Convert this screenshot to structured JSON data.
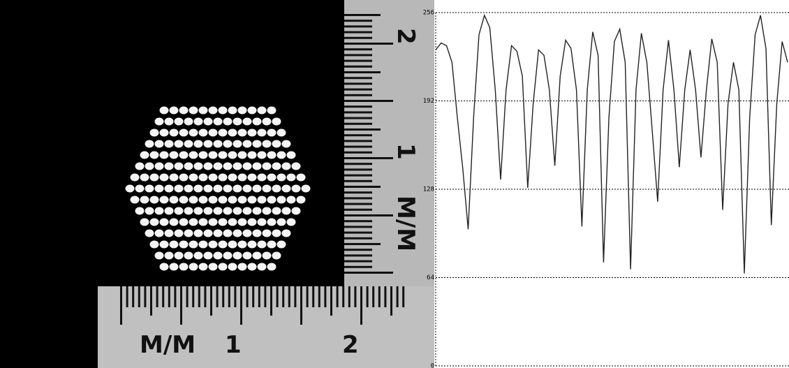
{
  "chart_data": {
    "type": "line",
    "values": [
      229,
      234,
      232,
      220,
      180,
      143,
      99,
      180,
      240,
      254,
      245,
      200,
      135,
      200,
      232,
      228,
      210,
      129,
      190,
      229,
      225,
      200,
      145,
      210,
      236,
      230,
      200,
      101,
      200,
      242,
      225,
      75,
      180,
      235,
      244,
      220,
      70,
      200,
      241,
      220,
      170,
      119,
      200,
      236,
      200,
      144,
      200,
      229,
      200,
      151,
      200,
      237,
      220,
      113,
      190,
      220,
      200,
      67,
      180,
      240,
      254,
      230,
      102,
      190,
      235,
      220
    ],
    "color": "#222222",
    "ylim": [
      0,
      256
    ],
    "yticks": [
      0,
      64,
      128,
      192,
      256
    ],
    "grid": true
  },
  "photo": {
    "bottom_ruler": [
      "M/M",
      "1",
      "2"
    ],
    "right_ruler": [
      "2",
      "1",
      "M/M"
    ]
  }
}
